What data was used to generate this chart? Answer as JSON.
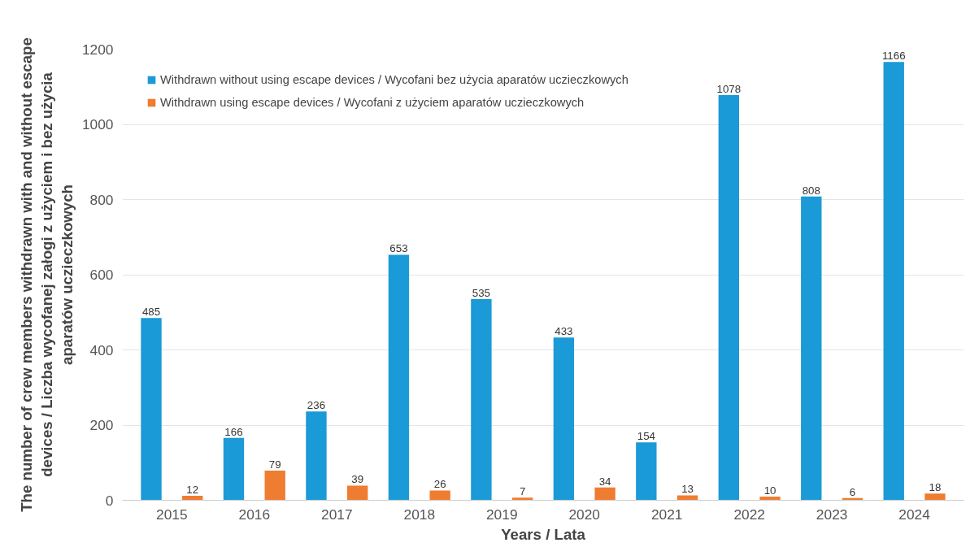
{
  "chart_data": {
    "type": "bar",
    "xlabel": "Years / Lata",
    "ylabel": "The number of crew members withdrawn with and without escape devices / Liczba wycofanej załogi z użyciem i bez użycia aparatów uczieczkowych",
    "categories": [
      "2015",
      "2016",
      "2017",
      "2018",
      "2019",
      "2020",
      "2021",
      "2022",
      "2023",
      "2024"
    ],
    "series": [
      {
        "name": "Withdrawn without using escape devices / Wycofani bez użycia aparatów uczieczkowych",
        "color": "#1a9ad6",
        "values": [
          485,
          166,
          236,
          653,
          535,
          433,
          154,
          1078,
          808,
          1166
        ]
      },
      {
        "name": "Withdrawn using escape devices / Wycofani z użyciem aparatów uczieczkowych",
        "color": "#ef7d31",
        "values": [
          12,
          79,
          39,
          26,
          7,
          34,
          13,
          10,
          6,
          18
        ]
      }
    ],
    "ylim": [
      0,
      1200
    ],
    "yticks": [
      0,
      200,
      400,
      600,
      800,
      1000,
      1200
    ],
    "grid": "y",
    "legend": "top left",
    "data_labels": true
  }
}
